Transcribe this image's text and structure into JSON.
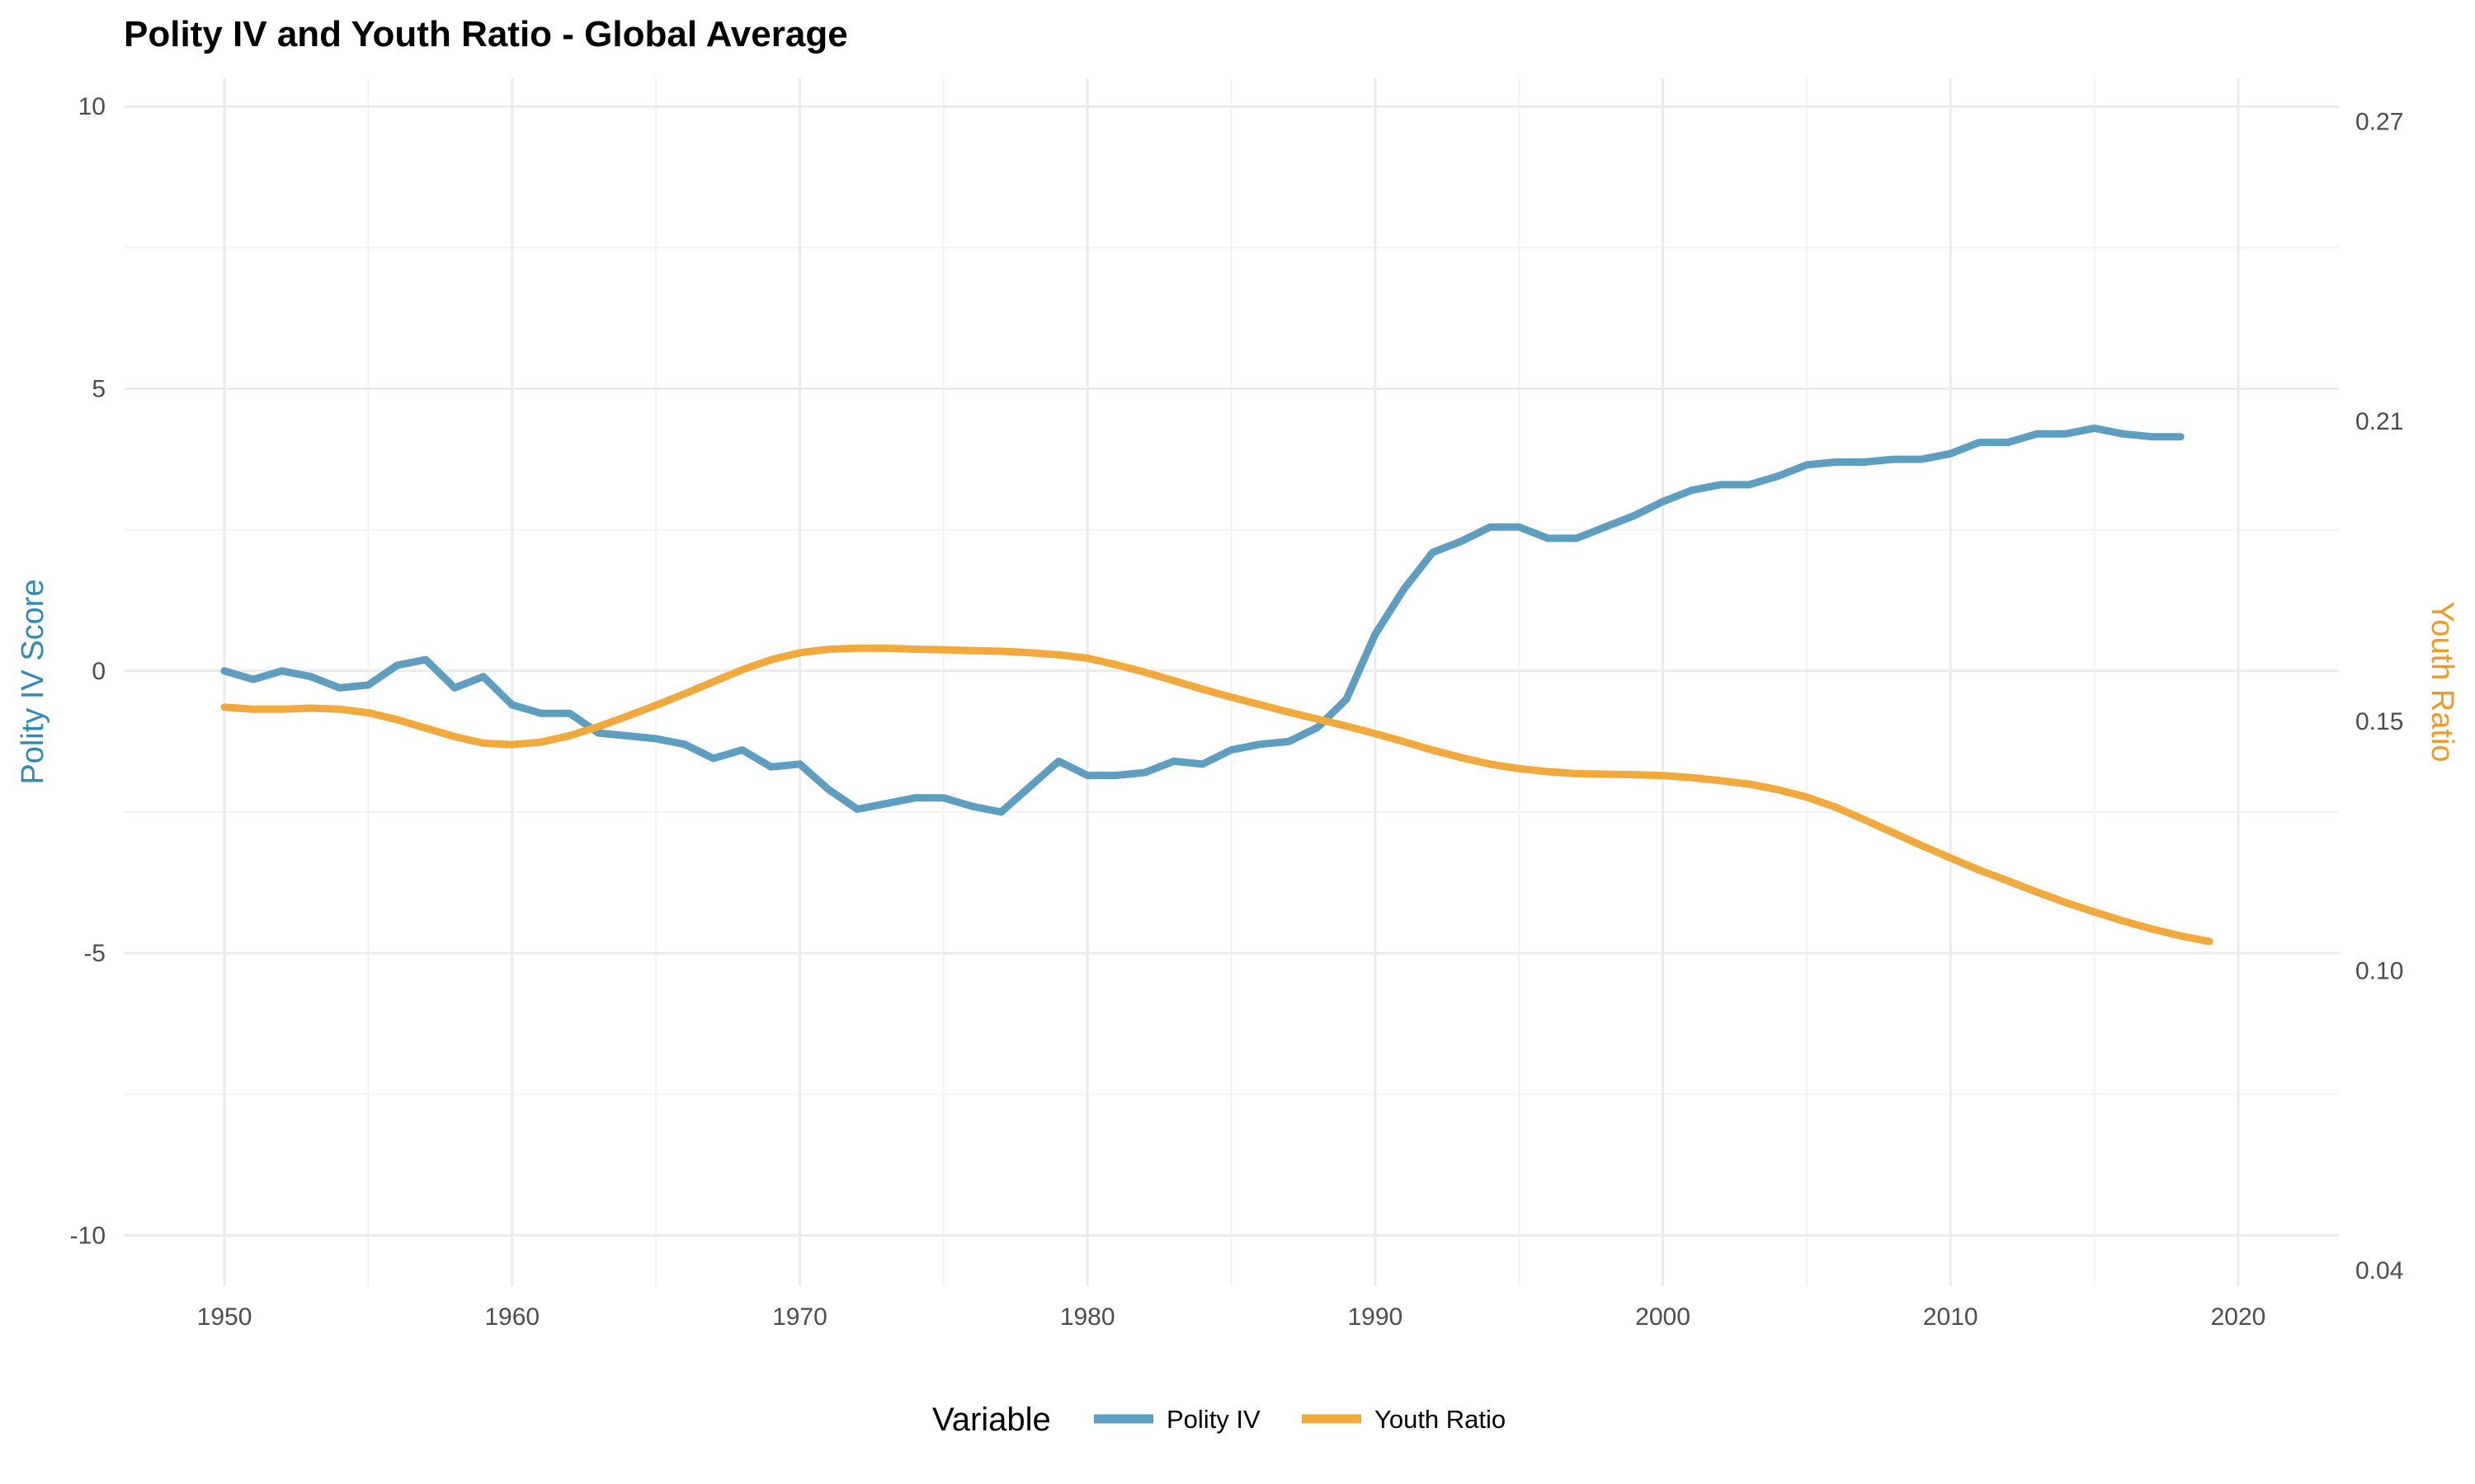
{
  "chart_data": {
    "type": "line",
    "title": "Polity IV and Youth Ratio - Global Average",
    "xlabel": "",
    "ylabel": "Polity IV Score",
    "y2label": "Youth Ratio",
    "xlim": [
      1946.5,
      2023.5
    ],
    "ylim": [
      -10.9,
      10.5
    ],
    "y2lim": [
      0.0369,
      0.2787
    ],
    "x_ticks": [
      1950,
      1960,
      1970,
      1980,
      1990,
      2000,
      2010,
      2020
    ],
    "y_ticks": [
      -10,
      -5,
      0,
      5,
      10
    ],
    "y2_ticks": [
      0.04,
      0.1,
      0.15,
      0.21,
      0.27
    ],
    "y2_tick_labels": [
      "0.04",
      "0.10",
      "0.15",
      "0.21",
      "0.27"
    ],
    "grid": true,
    "legend": {
      "title": "Variable",
      "position": "bottom"
    },
    "colors": {
      "polity": "#5b9ec1",
      "youth": "#f2a93b",
      "left_axis": "#2e8bb8",
      "right_axis": "#f29a1e"
    },
    "series": [
      {
        "name": "Polity IV",
        "axis": "left",
        "x": [
          1950,
          1951,
          1952,
          1953,
          1954,
          1955,
          1956,
          1957,
          1958,
          1959,
          1960,
          1961,
          1962,
          1963,
          1964,
          1965,
          1966,
          1967,
          1968,
          1969,
          1970,
          1971,
          1972,
          1973,
          1974,
          1975,
          1976,
          1977,
          1978,
          1979,
          1980,
          1981,
          1982,
          1983,
          1984,
          1985,
          1986,
          1987,
          1988,
          1989,
          1990,
          1991,
          1992,
          1993,
          1994,
          1995,
          1996,
          1997,
          1998,
          1999,
          2000,
          2001,
          2002,
          2003,
          2004,
          2005,
          2006,
          2007,
          2008,
          2009,
          2010,
          2011,
          2012,
          2013,
          2014,
          2015,
          2016,
          2017,
          2018
        ],
        "values": [
          0.0,
          -0.15,
          0.0,
          -0.1,
          -0.3,
          -0.25,
          0.1,
          0.2,
          -0.3,
          -0.1,
          -0.6,
          -0.75,
          -0.75,
          -1.1,
          -1.15,
          -1.2,
          -1.3,
          -1.55,
          -1.4,
          -1.7,
          -1.65,
          -2.1,
          -2.45,
          -2.35,
          -2.25,
          -2.25,
          -2.4,
          -2.5,
          -2.05,
          -1.6,
          -1.85,
          -1.85,
          -1.8,
          -1.6,
          -1.65,
          -1.4,
          -1.3,
          -1.25,
          -1.0,
          -0.5,
          0.65,
          1.45,
          2.1,
          2.3,
          2.55,
          2.55,
          2.35,
          2.35,
          2.55,
          2.75,
          3.0,
          3.2,
          3.3,
          3.3,
          3.45,
          3.65,
          3.7,
          3.7,
          3.75,
          3.75,
          3.85,
          4.05,
          4.05,
          4.2,
          4.2,
          4.3,
          4.2,
          4.15,
          4.15
        ]
      },
      {
        "name": "Youth Ratio",
        "axis": "right",
        "x": [
          1950,
          1951,
          1952,
          1953,
          1954,
          1955,
          1956,
          1957,
          1958,
          1959,
          1960,
          1961,
          1962,
          1963,
          1964,
          1965,
          1966,
          1967,
          1968,
          1969,
          1970,
          1971,
          1972,
          1973,
          1974,
          1975,
          1976,
          1977,
          1978,
          1979,
          1980,
          1981,
          1982,
          1983,
          1984,
          1985,
          1986,
          1987,
          1988,
          1989,
          1990,
          1991,
          1992,
          1993,
          1994,
          1995,
          1996,
          1997,
          1998,
          1999,
          2000,
          2001,
          2002,
          2003,
          2004,
          2005,
          2006,
          2007,
          2008,
          2009,
          2010,
          2011,
          2012,
          2013,
          2014,
          2015,
          2016,
          2017,
          2018,
          2019
        ],
        "values": [
          0.1528,
          0.1524,
          0.1524,
          0.1526,
          0.1524,
          0.1517,
          0.1503,
          0.1486,
          0.1469,
          0.1456,
          0.1453,
          0.1458,
          0.1471,
          0.1489,
          0.151,
          0.1532,
          0.1555,
          0.1579,
          0.1603,
          0.1623,
          0.1637,
          0.1644,
          0.1646,
          0.1646,
          0.1644,
          0.1643,
          0.1641,
          0.164,
          0.1637,
          0.1633,
          0.1626,
          0.1613,
          0.1598,
          0.1581,
          0.1564,
          0.1548,
          0.1533,
          0.1518,
          0.1504,
          0.149,
          0.1475,
          0.1459,
          0.1442,
          0.1427,
          0.1414,
          0.1405,
          0.1399,
          0.1395,
          0.1394,
          0.1393,
          0.1391,
          0.1387,
          0.1381,
          0.1374,
          0.1363,
          0.1348,
          0.1328,
          0.1303,
          0.1277,
          0.1251,
          0.1226,
          0.1202,
          0.118,
          0.1158,
          0.1137,
          0.1118,
          0.11,
          0.1084,
          0.107,
          0.1059
        ]
      }
    ]
  }
}
